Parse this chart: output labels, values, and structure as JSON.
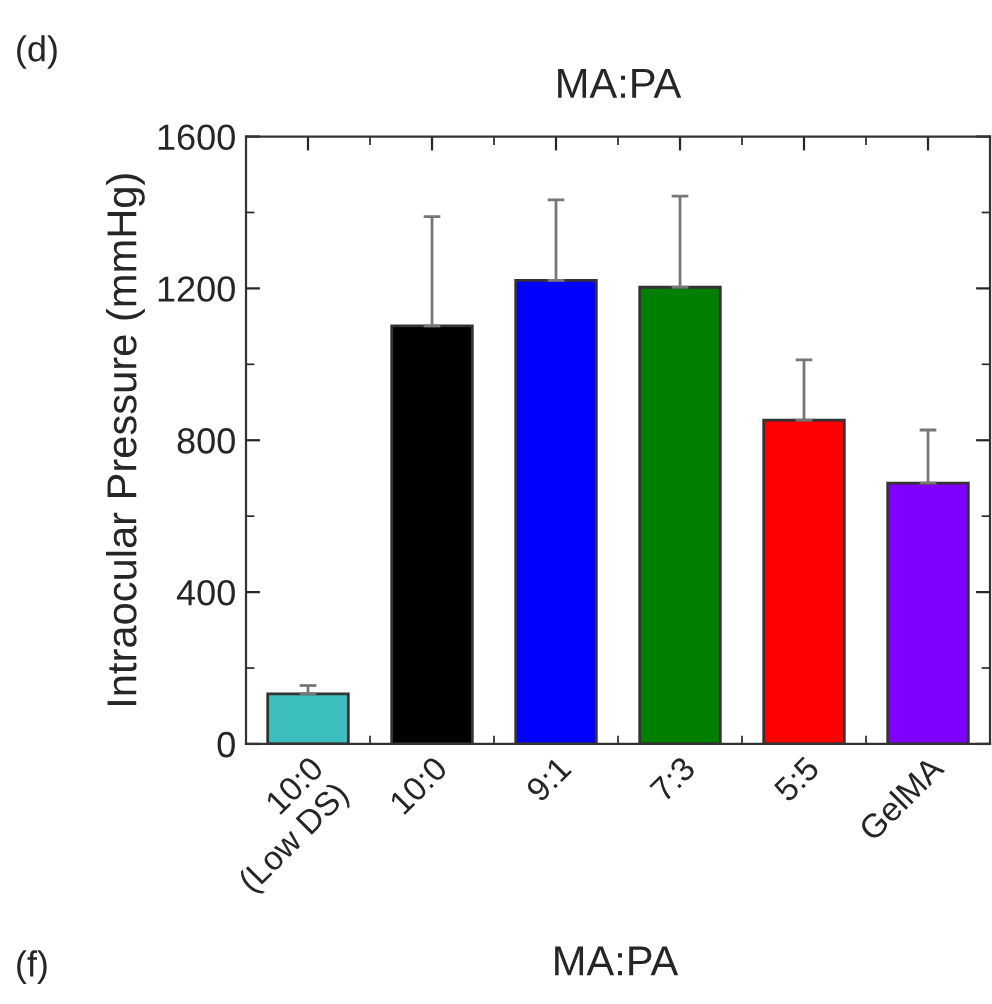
{
  "chart_data": {
    "type": "bar",
    "title": "MA:PA",
    "ylabel": "Intraocular Pressure (mmHg)",
    "categories": [
      "10:0\n(Low DS)",
      "10:0",
      "9:1",
      "7:3",
      "5:5",
      "GelMA"
    ],
    "values": [
      132,
      1101,
      1221,
      1203,
      853,
      687
    ],
    "errors": [
      22,
      288,
      212,
      240,
      159,
      140
    ],
    "colors": [
      "#3dbfbf",
      "#000000",
      "#0000ff",
      "#007f00",
      "#ff0000",
      "#7f00ff"
    ],
    "ylim": [
      0,
      1600
    ],
    "yticks": [
      0,
      400,
      800,
      1200,
      1600
    ],
    "grid": false,
    "annotations": [
      "(d)",
      "(f)",
      "MA:PA"
    ]
  }
}
